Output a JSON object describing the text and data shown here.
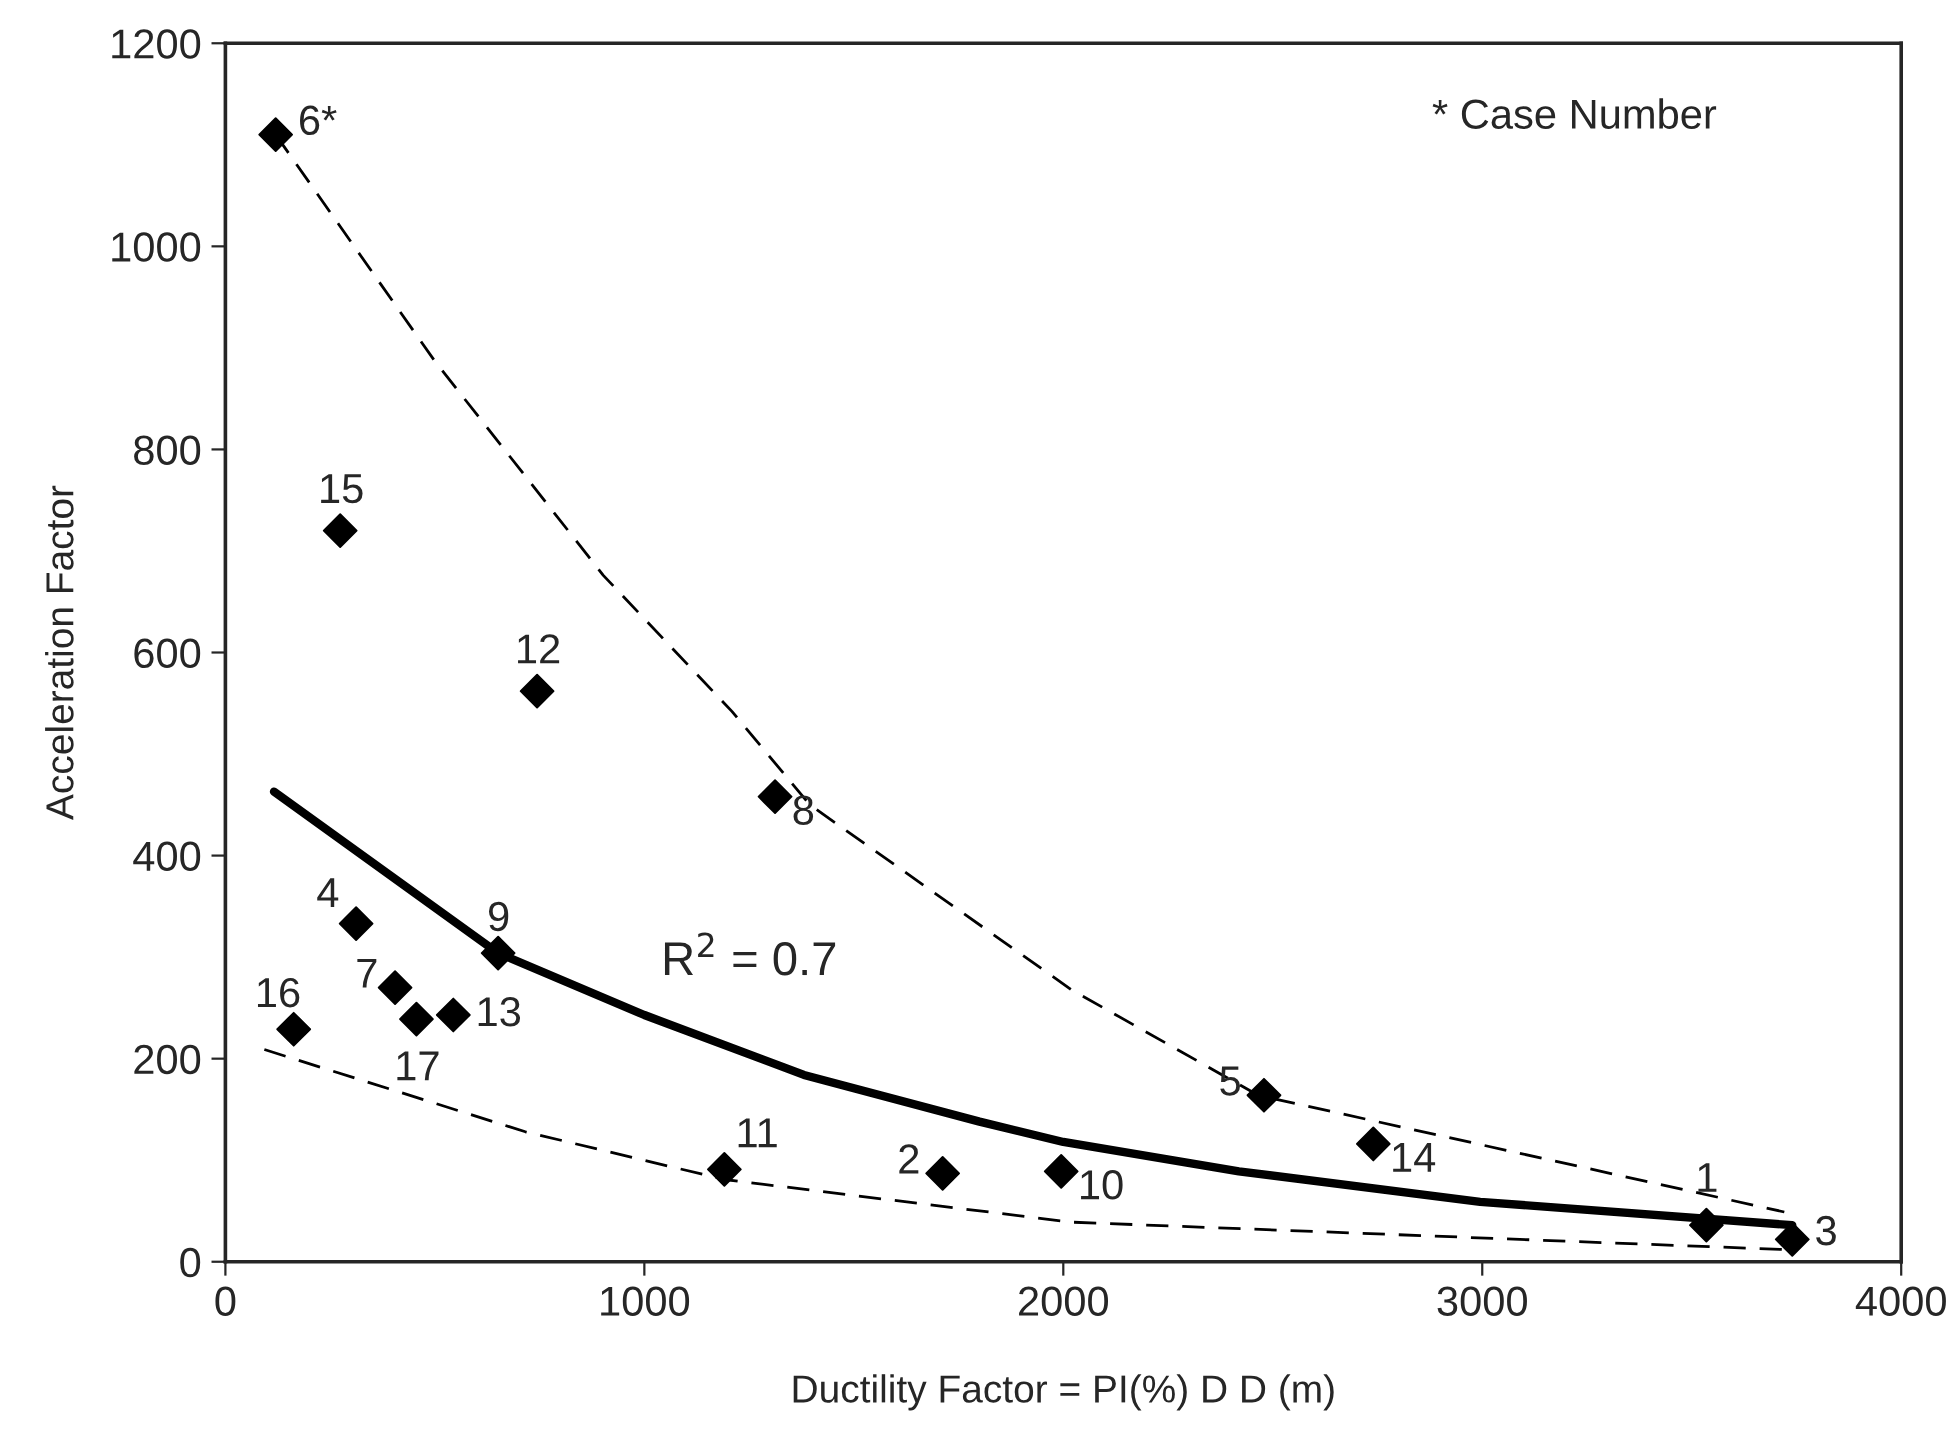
{
  "chart_data": {
    "type": "scatter",
    "xlabel": "Ductility Factor = PI(%) D D (m)",
    "ylabel": "Acceleration Factor",
    "xlim": [
      0,
      4000
    ],
    "xticks": [
      0,
      1000,
      2000,
      3000,
      4000
    ],
    "ylim": [
      0,
      1200
    ],
    "yticks": [
      0,
      200,
      400,
      600,
      800,
      1000,
      1200
    ],
    "grid": false,
    "legend": false,
    "marker": "diamond",
    "series": [
      {
        "color": "#000000",
        "x": [
          3535,
          1712,
          3740,
          312,
          2479,
          120,
          405,
          1312,
          651,
          1995,
          1191,
          744,
          544,
          2740,
          274,
          163,
          456
        ],
        "values": [
          36,
          87,
          22,
          333,
          164,
          1110,
          270,
          458,
          304,
          89,
          91,
          562,
          243,
          116,
          720,
          229,
          239
        ]
      },
      {
        "type": "line",
        "color": "#000000",
        "line_style": "solid",
        "marker": "none",
        "x": [
          116,
          651,
          1000,
          1381,
          1800,
          2000,
          2419,
          2995,
          3740
        ],
        "values": [
          463,
          304,
          243,
          184,
          138,
          118,
          89,
          59,
          36
        ]
      },
      {
        "type": "line",
        "color": "#000000",
        "line_style": "dashed",
        "marker": "none",
        "x": [
          120,
          498,
          902,
          1209,
          1395,
          2019,
          2465,
          3721
        ],
        "values": [
          1110,
          888,
          676,
          542,
          450,
          268,
          164,
          49
        ]
      },
      {
        "type": "line",
        "color": "#000000",
        "line_style": "dashed",
        "marker": "none",
        "x": [
          93,
          716,
          1191,
          2019,
          3721
        ],
        "values": [
          209,
          128,
          81,
          39,
          12
        ]
      }
    ],
    "annotations": [
      {
        "text": "1",
        "x": 3535,
        "y": 36
      },
      {
        "text": "2",
        "x": 1712,
        "y": 87
      },
      {
        "text": "3",
        "x": 3740,
        "y": 22
      },
      {
        "text": "4",
        "x": 312,
        "y": 333
      },
      {
        "text": "5",
        "x": 2479,
        "y": 164
      },
      {
        "text": "6*",
        "x": 120,
        "y": 1110
      },
      {
        "text": "7",
        "x": 405,
        "y": 270
      },
      {
        "text": "8",
        "x": 1312,
        "y": 458
      },
      {
        "text": "9",
        "x": 651,
        "y": 304
      },
      {
        "text": "10",
        "x": 1995,
        "y": 89
      },
      {
        "text": "11",
        "x": 1191,
        "y": 91
      },
      {
        "text": "12",
        "x": 744,
        "y": 562
      },
      {
        "text": "13",
        "x": 544,
        "y": 243
      },
      {
        "text": "14",
        "x": 2740,
        "y": 116
      },
      {
        "text": "15",
        "x": 274,
        "y": 720
      },
      {
        "text": "16",
        "x": 163,
        "y": 229
      },
      {
        "text": "17",
        "x": 456,
        "y": 239
      },
      "R$^{2}$ = 0.7",
      "* Case Number"
    ]
  }
}
